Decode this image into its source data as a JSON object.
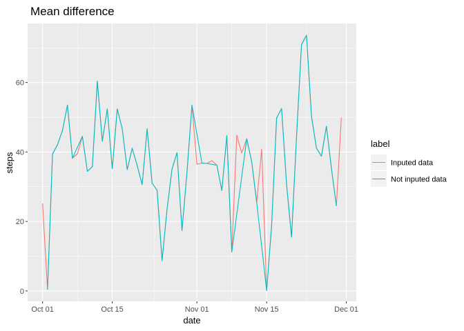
{
  "chart_data": {
    "type": "line",
    "title": "Mean difference",
    "xlabel": "date",
    "ylabel": "steps",
    "x_ticks": [
      "Oct 01",
      "Oct 15",
      "Nov 01",
      "Nov 15",
      "Dec 01"
    ],
    "y_ticks": [
      "0",
      "20",
      "40",
      "60"
    ],
    "xlim": [
      "2012-09-28",
      "2012-12-03"
    ],
    "ylim": [
      -3,
      77
    ],
    "grid": true,
    "legend_title": "label",
    "legend_position": "right",
    "series": [
      {
        "name": "Inputed data",
        "color": "#F8766D",
        "points": [
          [
            "2012-10-01",
            25.2
          ],
          [
            "2012-10-02",
            0.4
          ],
          [
            "2012-10-03",
            39.4
          ],
          [
            "2012-10-04",
            42.1
          ],
          [
            "2012-10-05",
            46.2
          ],
          [
            "2012-10-06",
            53.5
          ],
          [
            "2012-10-07",
            38.2
          ],
          [
            "2012-10-08",
            39.5
          ],
          [
            "2012-10-09",
            44.5
          ],
          [
            "2012-10-10",
            34.4
          ],
          [
            "2012-10-11",
            35.8
          ],
          [
            "2012-10-12",
            60.4
          ],
          [
            "2012-10-13",
            43.1
          ],
          [
            "2012-10-14",
            52.4
          ],
          [
            "2012-10-15",
            35.2
          ],
          [
            "2012-10-16",
            52.4
          ],
          [
            "2012-10-17",
            46.7
          ],
          [
            "2012-10-18",
            34.9
          ],
          [
            "2012-10-19",
            41.1
          ],
          [
            "2012-10-20",
            36.1
          ],
          [
            "2012-10-21",
            30.6
          ],
          [
            "2012-10-22",
            46.7
          ],
          [
            "2012-10-23",
            31.0
          ],
          [
            "2012-10-24",
            29.0
          ],
          [
            "2012-10-25",
            8.7
          ],
          [
            "2012-10-26",
            23.5
          ],
          [
            "2012-10-27",
            35.1
          ],
          [
            "2012-10-28",
            39.8
          ],
          [
            "2012-10-29",
            17.4
          ],
          [
            "2012-10-30",
            34.1
          ],
          [
            "2012-10-31",
            53.5
          ],
          [
            "2012-11-01",
            36.5
          ],
          [
            "2012-11-02",
            36.8
          ],
          [
            "2012-11-03",
            36.7
          ],
          [
            "2012-11-04",
            37.5
          ],
          [
            "2012-11-05",
            36.2
          ],
          [
            "2012-11-06",
            28.9
          ],
          [
            "2012-11-07",
            44.7
          ],
          [
            "2012-11-08",
            11.2
          ],
          [
            "2012-11-09",
            44.8
          ],
          [
            "2012-11-10",
            39.7
          ],
          [
            "2012-11-11",
            43.8
          ],
          [
            "2012-11-12",
            37.2
          ],
          [
            "2012-11-13",
            25.5
          ],
          [
            "2012-11-14",
            40.8
          ],
          [
            "2012-11-15",
            0.1
          ],
          [
            "2012-11-16",
            18.8
          ],
          [
            "2012-11-17",
            49.8
          ],
          [
            "2012-11-18",
            52.5
          ],
          [
            "2012-11-19",
            30.7
          ],
          [
            "2012-11-20",
            15.5
          ],
          [
            "2012-11-21",
            44.4
          ],
          [
            "2012-11-22",
            70.9
          ],
          [
            "2012-11-23",
            73.6
          ],
          [
            "2012-11-24",
            50.3
          ],
          [
            "2012-11-25",
            41.1
          ],
          [
            "2012-11-26",
            38.8
          ],
          [
            "2012-11-27",
            47.4
          ],
          [
            "2012-11-28",
            35.4
          ],
          [
            "2012-11-29",
            24.5
          ],
          [
            "2012-11-30",
            49.9
          ]
        ]
      },
      {
        "name": "Not inputed data",
        "color": "#00BFC4",
        "points": [
          [
            "2012-10-02",
            0.4
          ],
          [
            "2012-10-03",
            39.4
          ],
          [
            "2012-10-04",
            42.1
          ],
          [
            "2012-10-05",
            46.2
          ],
          [
            "2012-10-06",
            53.5
          ],
          [
            "2012-10-07",
            38.2
          ],
          [
            "2012-10-09",
            44.5
          ],
          [
            "2012-10-10",
            34.4
          ],
          [
            "2012-10-11",
            35.8
          ],
          [
            "2012-10-12",
            60.4
          ],
          [
            "2012-10-13",
            43.1
          ],
          [
            "2012-10-14",
            52.4
          ],
          [
            "2012-10-15",
            35.2
          ],
          [
            "2012-10-16",
            52.4
          ],
          [
            "2012-10-17",
            46.7
          ],
          [
            "2012-10-18",
            34.9
          ],
          [
            "2012-10-19",
            41.1
          ],
          [
            "2012-10-20",
            36.1
          ],
          [
            "2012-10-21",
            30.6
          ],
          [
            "2012-10-22",
            46.7
          ],
          [
            "2012-10-23",
            31.0
          ],
          [
            "2012-10-24",
            29.0
          ],
          [
            "2012-10-25",
            8.7
          ],
          [
            "2012-10-26",
            23.5
          ],
          [
            "2012-10-27",
            35.1
          ],
          [
            "2012-10-28",
            39.8
          ],
          [
            "2012-10-29",
            17.4
          ],
          [
            "2012-10-30",
            34.1
          ],
          [
            "2012-10-31",
            53.5
          ],
          [
            "2012-11-02",
            36.8
          ],
          [
            "2012-11-03",
            36.7
          ],
          [
            "2012-11-05",
            36.2
          ],
          [
            "2012-11-06",
            28.9
          ],
          [
            "2012-11-07",
            44.7
          ],
          [
            "2012-11-08",
            11.2
          ],
          [
            "2012-11-11",
            43.8
          ],
          [
            "2012-11-12",
            37.2
          ],
          [
            "2012-11-13",
            25.5
          ],
          [
            "2012-11-15",
            0.1
          ],
          [
            "2012-11-16",
            18.8
          ],
          [
            "2012-11-17",
            49.8
          ],
          [
            "2012-11-18",
            52.5
          ],
          [
            "2012-11-19",
            30.7
          ],
          [
            "2012-11-20",
            15.5
          ],
          [
            "2012-11-21",
            44.4
          ],
          [
            "2012-11-22",
            70.9
          ],
          [
            "2012-11-23",
            73.6
          ],
          [
            "2012-11-24",
            50.3
          ],
          [
            "2012-11-25",
            41.1
          ],
          [
            "2012-11-26",
            38.8
          ],
          [
            "2012-11-27",
            47.4
          ],
          [
            "2012-11-28",
            35.4
          ],
          [
            "2012-11-29",
            24.5
          ]
        ]
      }
    ]
  }
}
